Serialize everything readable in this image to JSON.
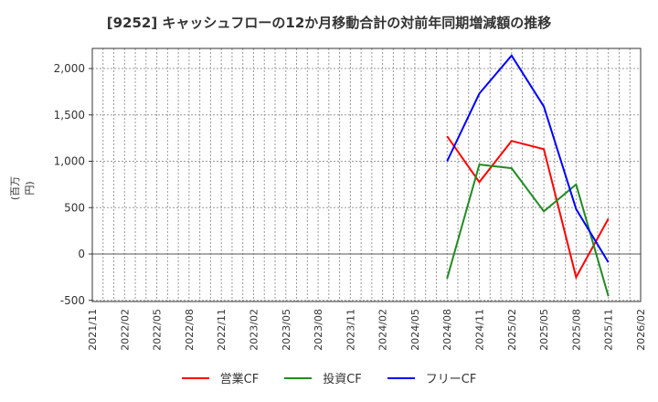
{
  "title": "[9252]  キャッシュフローの12か月移動合計の対前年同期増減額の推移",
  "y_axis_label": "(百万円)",
  "legend": [
    {
      "label": "営業CF",
      "color": "#ff0000"
    },
    {
      "label": "投資CF",
      "color": "#228b22"
    },
    {
      "label": "フリーCF",
      "color": "#0000ff"
    }
  ],
  "chart_data": {
    "type": "line",
    "title": "[9252]  キャッシュフローの12か月移動合計の対前年同期増減額の推移",
    "xlabel": "",
    "ylabel": "(百万円)",
    "ylim": [
      -500,
      2200
    ],
    "yticks": [
      -500,
      0,
      500,
      1000,
      1500,
      2000
    ],
    "ytick_labels": [
      "-500",
      "0",
      "500",
      "1,000",
      "1,500",
      "2,000"
    ],
    "xtick_labels": [
      "2021/11",
      "2022/02",
      "2022/05",
      "2022/08",
      "2022/11",
      "2023/02",
      "2023/05",
      "2023/08",
      "2023/11",
      "2024/02",
      "2024/05",
      "2024/08",
      "2024/11",
      "2025/02",
      "2025/05",
      "2025/08",
      "2025/11",
      "2026/02"
    ],
    "grid": true,
    "legend_position": "bottom",
    "x": [
      "2024/08",
      "2024/11",
      "2025/02",
      "2025/05",
      "2025/08",
      "2025/11"
    ],
    "series": [
      {
        "name": "営業CF",
        "color": "#ff0000",
        "values": [
          1270,
          775,
          1220,
          1130,
          -250,
          380
        ]
      },
      {
        "name": "投資CF",
        "color": "#228b22",
        "values": [
          -265,
          965,
          925,
          460,
          750,
          -455
        ]
      },
      {
        "name": "フリーCF",
        "color": "#0000ff",
        "values": [
          1000,
          1730,
          2140,
          1590,
          485,
          -90
        ]
      }
    ]
  }
}
